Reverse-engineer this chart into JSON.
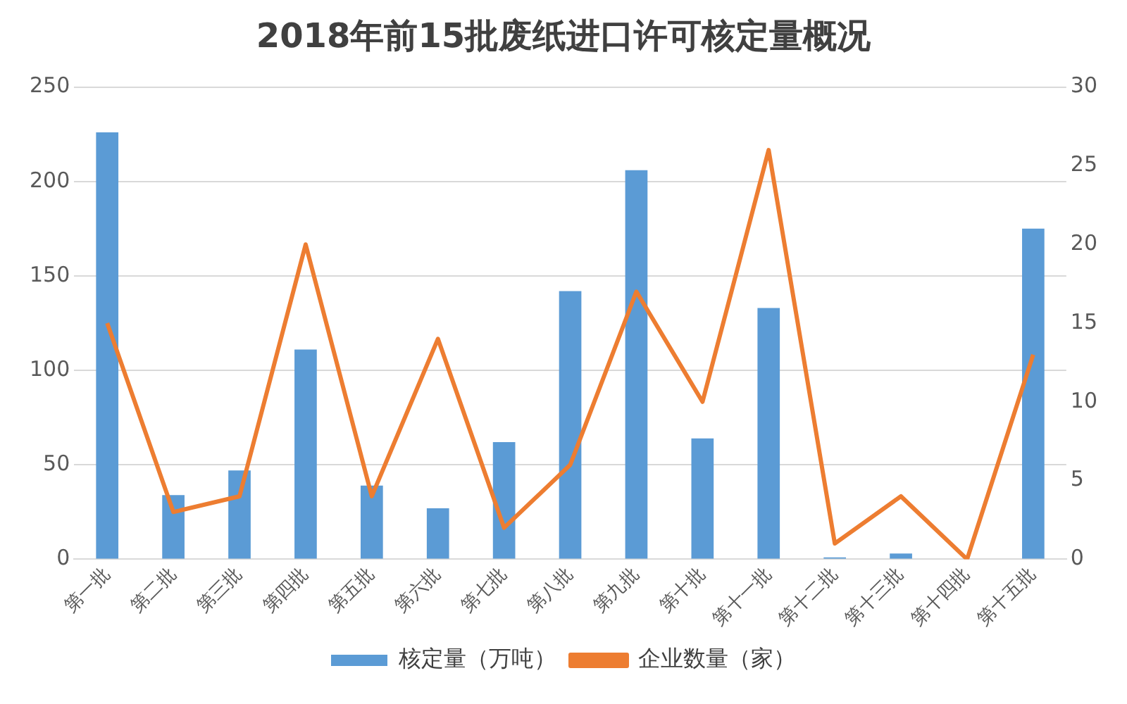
{
  "chart_data": {
    "type": "bar",
    "title": "2018年前15批废纸进口许可核定量概况",
    "categories": [
      "第一批",
      "第二批",
      "第三批",
      "第四批",
      "第五批",
      "第六批",
      "第七批",
      "第八批",
      "第九批",
      "第十批",
      "第十一批",
      "第十二批",
      "第十三批",
      "第十四批",
      "第十五批"
    ],
    "series": [
      {
        "name": "核定量（万吨）",
        "color": "#5b9bd5",
        "values": [
          226,
          34,
          47,
          111,
          39,
          27,
          62,
          142,
          206,
          64,
          133,
          1,
          3,
          0,
          175
        ]
      },
      {
        "name": "企业数量（家）",
        "type": "line",
        "axis": "y2",
        "color": "#ed7d31",
        "values": [
          15,
          3,
          4,
          20,
          4,
          14,
          2,
          6,
          17,
          10,
          26,
          1,
          4,
          0,
          13
        ]
      }
    ],
    "ylim": [
      0,
      250
    ],
    "yticks": [
      0,
      50,
      100,
      150,
      200,
      250
    ],
    "y2lim": [
      0,
      30
    ],
    "y2ticks": [
      0,
      5,
      10,
      15,
      20,
      25,
      30
    ],
    "grid": "y",
    "legend": "bottom",
    "marker": "none",
    "line_style": "solid"
  }
}
